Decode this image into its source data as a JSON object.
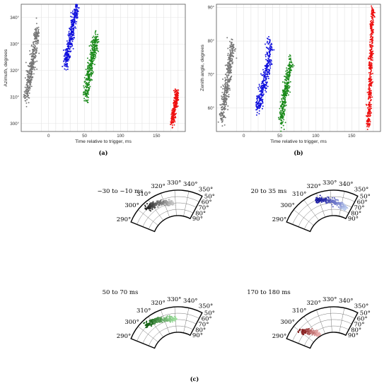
{
  "chart_data": [
    {
      "id": "a",
      "type": "scatter",
      "panel_label": "(a)",
      "xlabel": "Time relative to trigger, ms",
      "ylabel": "Azimuth, degrees",
      "xlim": [
        -38,
        190
      ],
      "ylim": [
        297,
        345
      ],
      "xticks": [
        -10,
        0,
        10,
        20,
        30,
        40,
        50,
        60,
        70,
        80,
        90,
        100,
        110,
        120,
        130,
        140,
        150,
        160,
        170,
        180
      ],
      "xtick_labels": [
        {
          "value": 0,
          "label": "0"
        },
        {
          "value": 50,
          "label": "50"
        },
        {
          "value": 100,
          "label": "100"
        },
        {
          "value": 150,
          "label": "150"
        }
      ],
      "ytick_labels": [
        {
          "value": 300,
          "label": "300°"
        },
        {
          "value": 310,
          "label": "310°"
        },
        {
          "value": 320,
          "label": "320°"
        },
        {
          "value": 330,
          "label": "330°"
        },
        {
          "value": 340,
          "label": "340°"
        }
      ],
      "grid": true,
      "series": [
        {
          "color": "#777777",
          "cluster": [
            [
              -30,
              311
            ],
            [
              -28,
              315
            ],
            [
              -26,
              318
            ],
            [
              -24,
              321
            ],
            [
              -22,
              324
            ],
            [
              -20,
              327
            ],
            [
              -18,
              331
            ],
            [
              -16,
              334
            ]
          ],
          "spread": [
            3.5,
            3.2
          ]
        },
        {
          "color": "#1010dd",
          "cluster": [
            [
              24,
              323
            ],
            [
              26,
              326
            ],
            [
              28,
              328
            ],
            [
              30,
              331
            ],
            [
              32,
              334
            ],
            [
              34,
              337
            ],
            [
              36,
              340
            ],
            [
              38,
              343
            ]
          ],
          "spread": [
            3.0,
            3.0
          ]
        },
        {
          "color": "#1a8a1a",
          "cluster": [
            [
              52,
              311
            ],
            [
              54,
              315
            ],
            [
              56,
              318
            ],
            [
              58,
              321
            ],
            [
              60,
              324
            ],
            [
              62,
              327
            ],
            [
              64,
              329
            ],
            [
              66,
              331
            ]
          ],
          "spread": [
            3.2,
            3.0
          ]
        },
        {
          "color": "#ee1111",
          "cluster": [
            [
              172,
              301
            ],
            [
              173,
              303
            ],
            [
              175,
              305
            ],
            [
              176,
              307
            ],
            [
              177,
              309
            ],
            [
              178,
              311
            ]
          ],
          "spread": [
            2.2,
            2.0
          ]
        }
      ]
    },
    {
      "id": "b",
      "type": "scatter",
      "panel_label": "(b)",
      "xlabel": "Time relative to trigger, ms",
      "ylabel": "Zenith angle, degrees",
      "xlim": [
        -38,
        190
      ],
      "ylim": [
        53,
        91
      ],
      "xticks": [
        -10,
        0,
        10,
        20,
        30,
        40,
        50,
        60,
        70,
        80,
        90,
        100,
        110,
        120,
        130,
        140,
        150,
        160,
        170,
        180
      ],
      "xtick_labels": [
        {
          "value": 0,
          "label": "0"
        },
        {
          "value": 50,
          "label": "50"
        },
        {
          "value": 100,
          "label": "100"
        },
        {
          "value": 150,
          "label": "150"
        }
      ],
      "ytick_labels": [
        {
          "value": 60,
          "label": "60°"
        },
        {
          "value": 70,
          "label": "70°"
        },
        {
          "value": 80,
          "label": "80°"
        },
        {
          "value": 90,
          "label": "90°"
        }
      ],
      "grid": true,
      "series": [
        {
          "color": "#777777",
          "cluster": [
            [
              -30,
              58
            ],
            [
              -28,
              61
            ],
            [
              -26,
              64
            ],
            [
              -24,
              66
            ],
            [
              -22,
              69
            ],
            [
              -20,
              72
            ],
            [
              -18,
              75
            ],
            [
              -16,
              78
            ]
          ],
          "spread": [
            3.5,
            2.6
          ]
        },
        {
          "color": "#1010dd",
          "cluster": [
            [
              20,
              61
            ],
            [
              23,
              63
            ],
            [
              26,
              66
            ],
            [
              29,
              68
            ],
            [
              32,
              71
            ],
            [
              34,
              74
            ],
            [
              36,
              78
            ]
          ],
          "spread": [
            3.5,
            2.6
          ]
        },
        {
          "color": "#1a8a1a",
          "cluster": [
            [
              52,
              57
            ],
            [
              54,
              60
            ],
            [
              56,
              63
            ],
            [
              58,
              65
            ],
            [
              60,
              67
            ],
            [
              62,
              70
            ],
            [
              65,
              73
            ]
          ],
          "spread": [
            3.0,
            2.4
          ]
        },
        {
          "color": "#ee1111",
          "cluster": [
            [
              173,
              56
            ],
            [
              174,
              60
            ],
            [
              175,
              64
            ],
            [
              176,
              68
            ],
            [
              176,
              72
            ],
            [
              177,
              76
            ],
            [
              178,
              80
            ],
            [
              178,
              84
            ],
            [
              179,
              88
            ]
          ],
          "spread": [
            2.2,
            2.2
          ]
        }
      ]
    },
    {
      "id": "c",
      "type": "polar-sector-grid",
      "panel_label": "(c)",
      "azimuth_labels": [
        {
          "value": 290,
          "label": "290°"
        },
        {
          "value": 300,
          "label": "300°"
        },
        {
          "value": 310,
          "label": "310°"
        },
        {
          "value": 320,
          "label": "320°"
        },
        {
          "value": 330,
          "label": "330°"
        },
        {
          "value": 340,
          "label": "340°"
        },
        {
          "value": 350,
          "label": "350°"
        }
      ],
      "zenith_labels": [
        {
          "value": 50,
          "label": "50°"
        },
        {
          "value": 60,
          "label": "60°"
        },
        {
          "value": 70,
          "label": "70°"
        },
        {
          "value": 80,
          "label": "80°"
        },
        {
          "value": 90,
          "label": "90°"
        }
      ],
      "subplots": [
        {
          "title": "−30 to −10 ms",
          "dark": "#222222",
          "light": "#cccccc",
          "az": [
            305,
            328
          ],
          "ze": [
            55,
            72
          ]
        },
        {
          "title": "20 to 35 ms",
          "dark": "#0a0a99",
          "light": "#bfcfee",
          "az": [
            318,
            345
          ],
          "ze": [
            55,
            78
          ]
        },
        {
          "title": "50 to 70 ms",
          "dark": "#0e5c0e",
          "light": "#a6e6a6",
          "az": [
            305,
            330
          ],
          "ze": [
            55,
            72
          ]
        },
        {
          "title": "170 to 180 ms",
          "dark": "#7a0d0d",
          "light": "#eeb3b3",
          "az": [
            300,
            312
          ],
          "ze": [
            56,
            88
          ]
        }
      ]
    }
  ]
}
